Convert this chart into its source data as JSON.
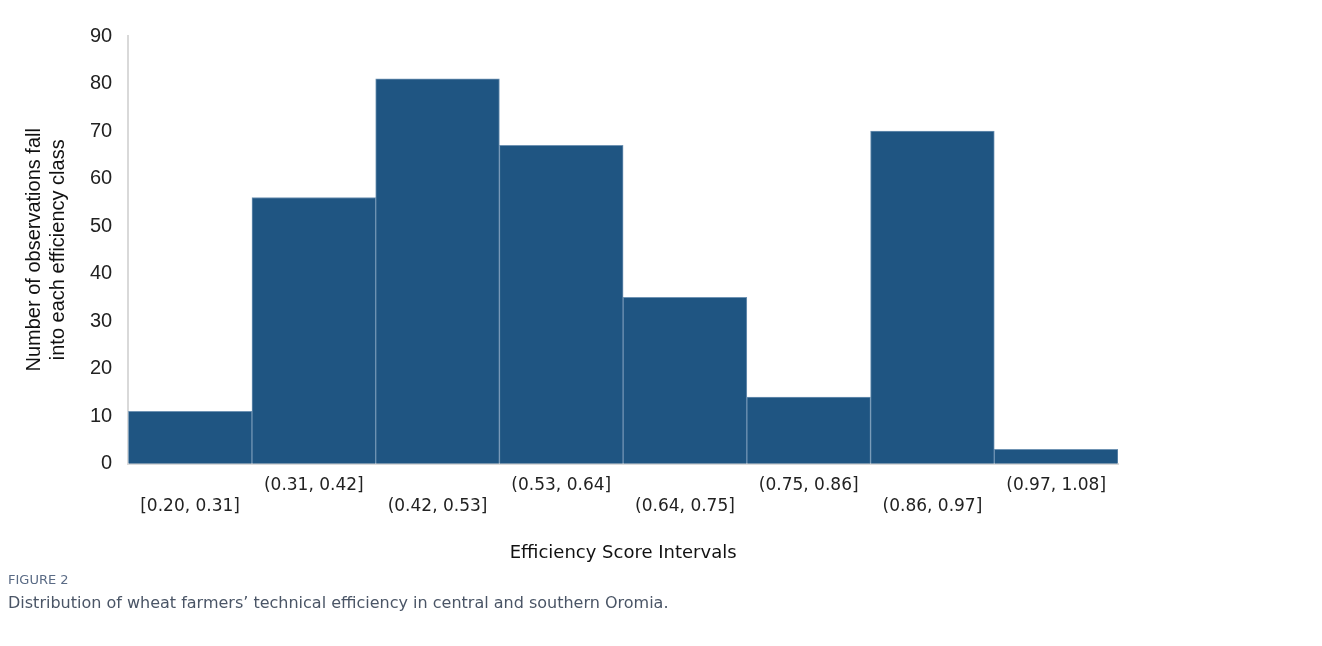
{
  "chart_data": {
    "type": "bar",
    "title": "FIGURE 2",
    "subtitle": "Distribution of wheat farmers’ technical efficiency in central and southern Oromia.",
    "xlabel": "Efficiency Score Intervals",
    "ylabel": "Number of observations fall into each efficiency class",
    "categories": [
      "[0.20, 0.31]",
      "(0.31, 0.42]",
      "(0.42, 0.53]",
      "(0.53, 0.64]",
      "(0.64, 0.75]",
      "(0.75, 0.86]",
      "(0.86, 0.97]",
      "(0.97, 1.08]"
    ],
    "values": [
      11,
      56,
      81,
      67,
      35,
      14,
      70,
      3
    ],
    "color": "#1f5582",
    "ylim": [
      0,
      90
    ],
    "yticks": [
      0,
      10,
      20,
      30,
      40,
      50,
      60,
      70,
      80,
      90
    ],
    "grid": false
  }
}
